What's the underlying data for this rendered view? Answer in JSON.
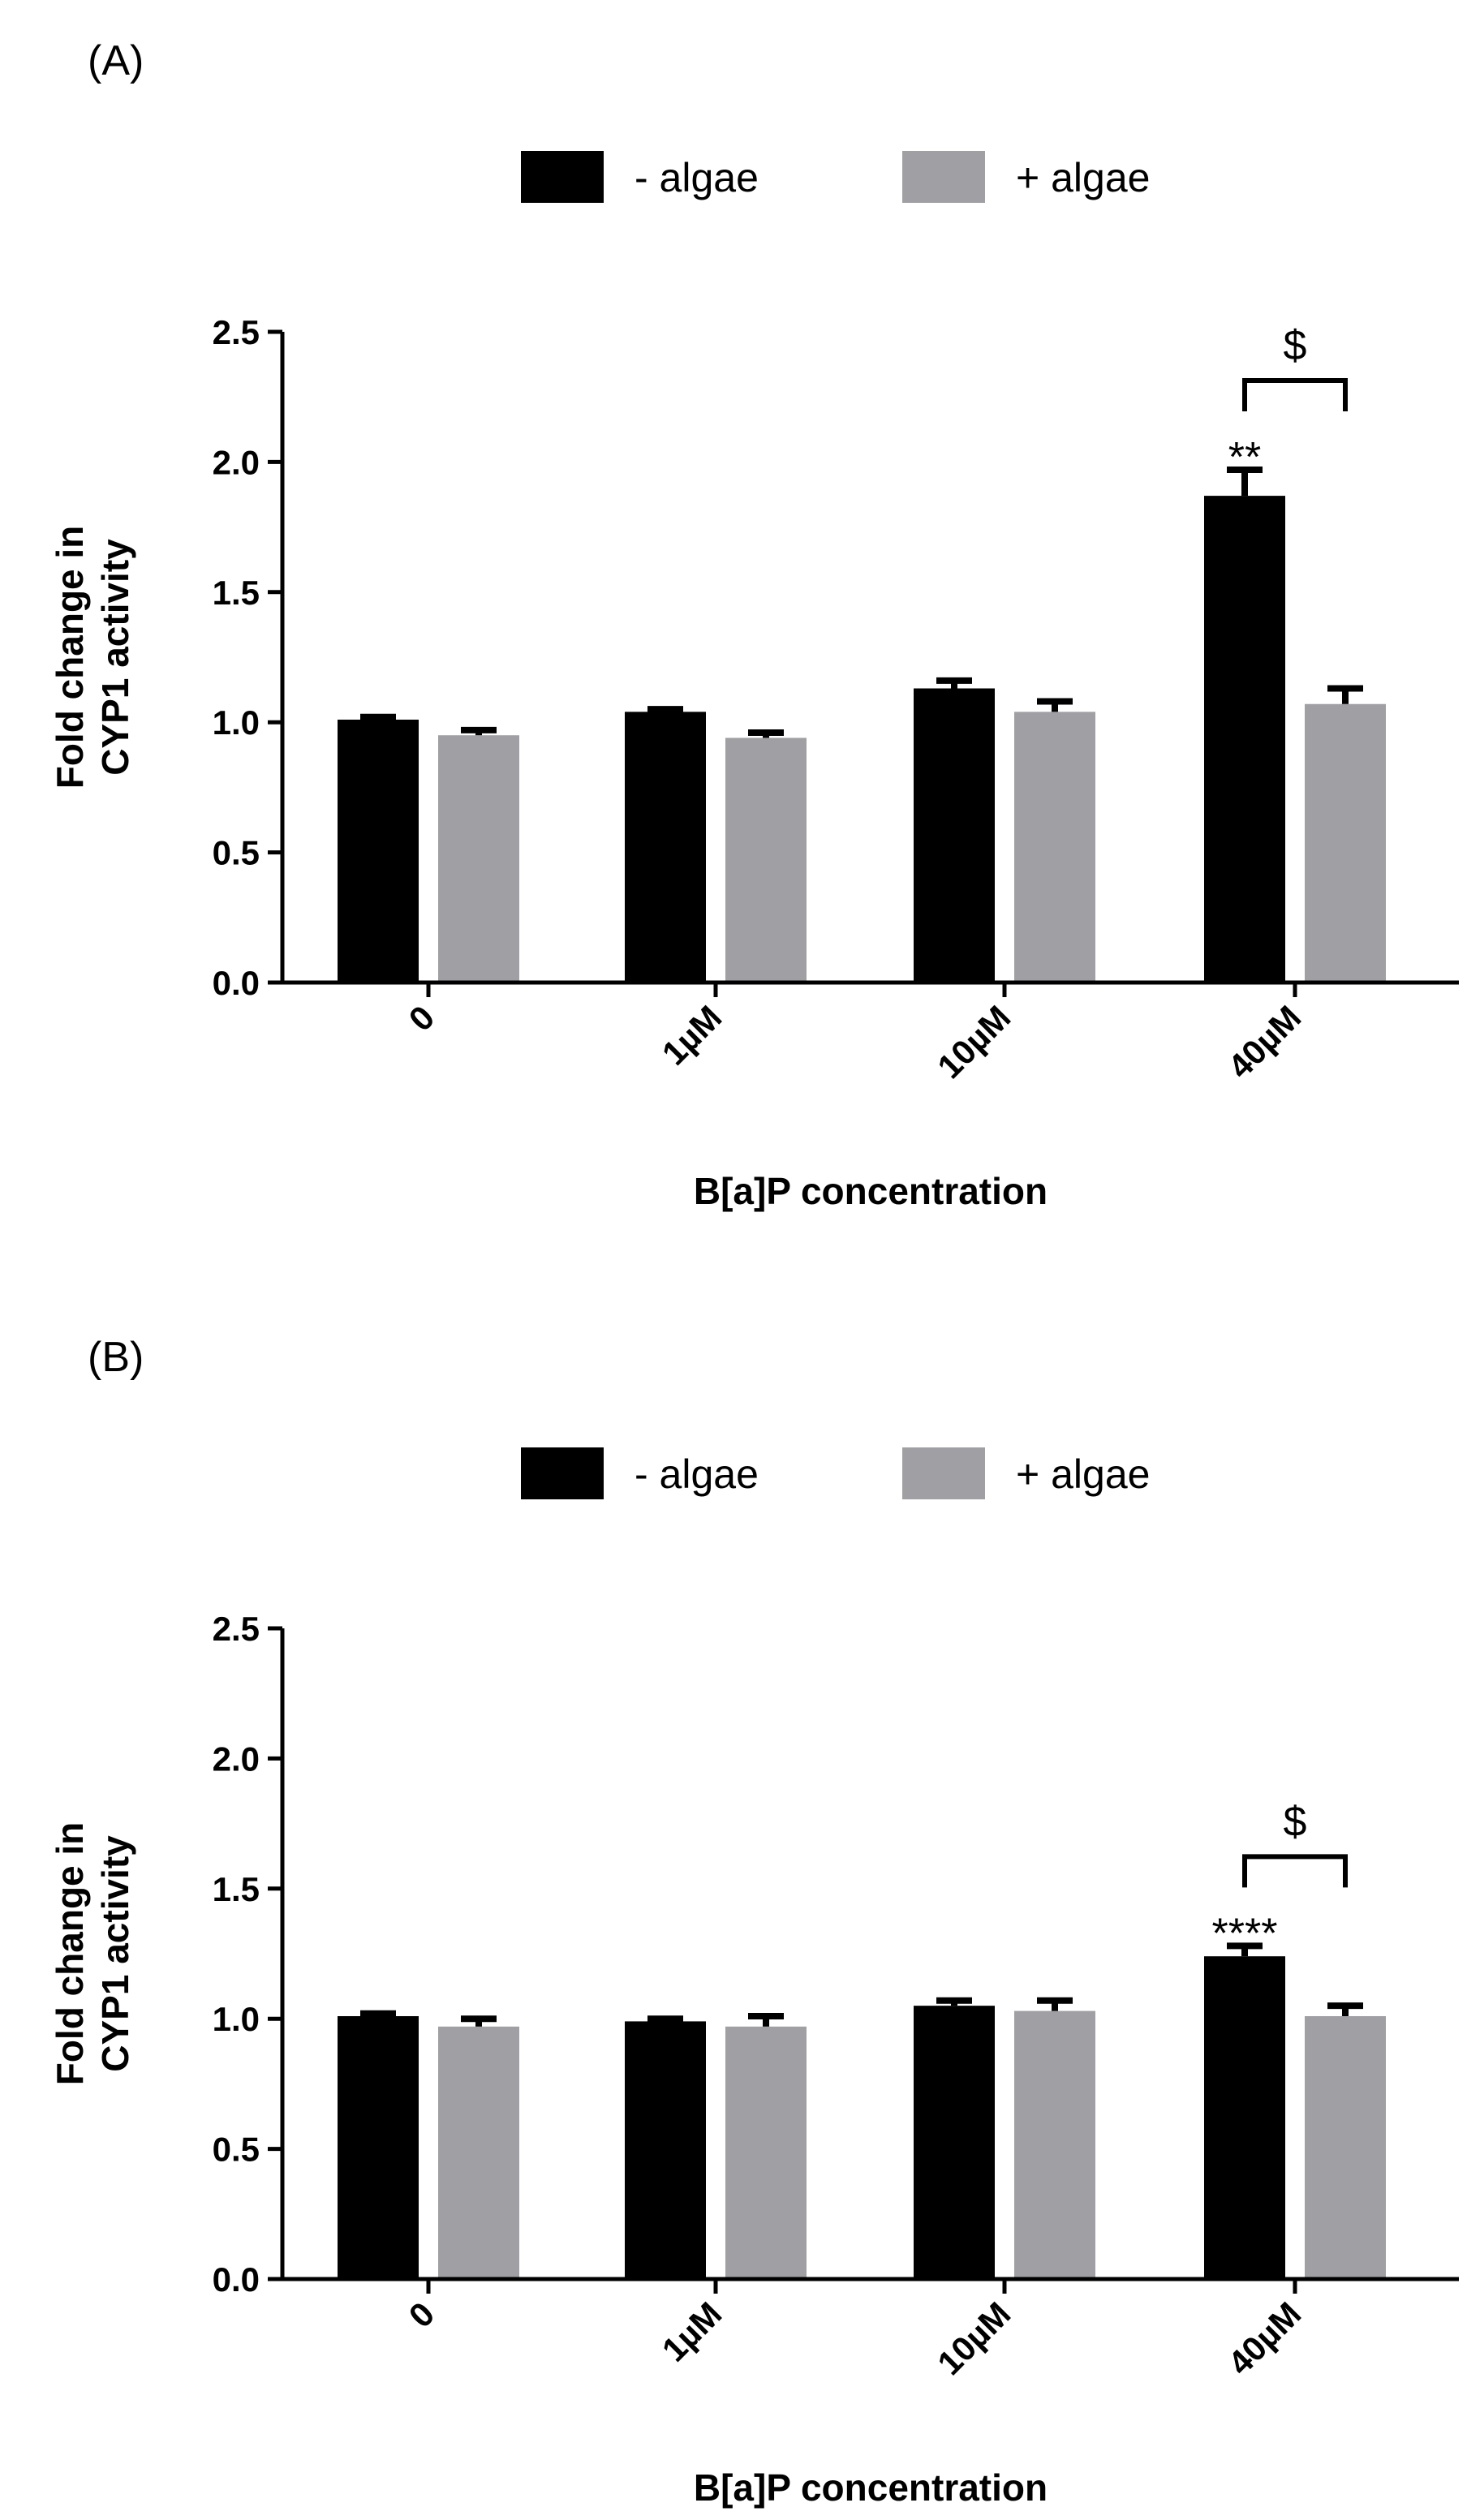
{
  "chart_data": [
    {
      "panel_label": "(A)",
      "type": "bar",
      "categories": [
        "0",
        "1µM",
        "10µM",
        "40µM"
      ],
      "series": [
        {
          "name": "- algae",
          "color": "#000000",
          "values": [
            1.01,
            1.04,
            1.13,
            1.87
          ],
          "errors": [
            0.01,
            0.01,
            0.03,
            0.1
          ]
        },
        {
          "name": "+ algae",
          "color": "#a0a0a4",
          "values": [
            0.95,
            0.94,
            1.04,
            1.07
          ],
          "errors": [
            0.02,
            0.02,
            0.04,
            0.06
          ]
        }
      ],
      "xlabel": "B[a]P concentration",
      "ylabel_lines": [
        "Fold change in",
        "CYP1 activity"
      ],
      "ylim": [
        0,
        2.5
      ],
      "yticks": [
        "0.0",
        "0.5",
        "1.0",
        "1.5",
        "2.0",
        "2.5"
      ],
      "ytick_values": [
        0,
        0.5,
        1.0,
        1.5,
        2.0,
        2.5
      ],
      "legend": "top-center",
      "grid": false,
      "annotations": [
        {
          "text": "**",
          "category_index": 3,
          "series_index": 0
        },
        {
          "text": "$",
          "bracket": [
            3,
            3
          ],
          "between_series": [
            0,
            1
          ]
        }
      ]
    },
    {
      "panel_label": "(B)",
      "type": "bar",
      "categories": [
        "0",
        "1µM",
        "10µM",
        "40µM"
      ],
      "series": [
        {
          "name": "- algae",
          "color": "#000000",
          "values": [
            1.01,
            0.99,
            1.05,
            1.24
          ],
          "errors": [
            0.01,
            0.01,
            0.02,
            0.04
          ]
        },
        {
          "name": "+ algae",
          "color": "#a0a0a4",
          "values": [
            0.97,
            0.97,
            1.03,
            1.01
          ],
          "errors": [
            0.03,
            0.04,
            0.04,
            0.04
          ]
        }
      ],
      "xlabel": "B[a]P concentration",
      "ylabel_lines": [
        "Fold change in",
        "CYP1 activity"
      ],
      "ylim": [
        0,
        2.5
      ],
      "yticks": [
        "0.0",
        "0.5",
        "1.0",
        "1.5",
        "2.0",
        "2.5"
      ],
      "ytick_values": [
        0,
        0.5,
        1.0,
        1.5,
        2.0,
        2.5
      ],
      "legend": "top-center",
      "grid": false,
      "annotations": [
        {
          "text": "****",
          "category_index": 3,
          "series_index": 0
        },
        {
          "text": "$",
          "bracket": [
            3,
            3
          ],
          "between_series": [
            0,
            1
          ]
        }
      ]
    }
  ]
}
